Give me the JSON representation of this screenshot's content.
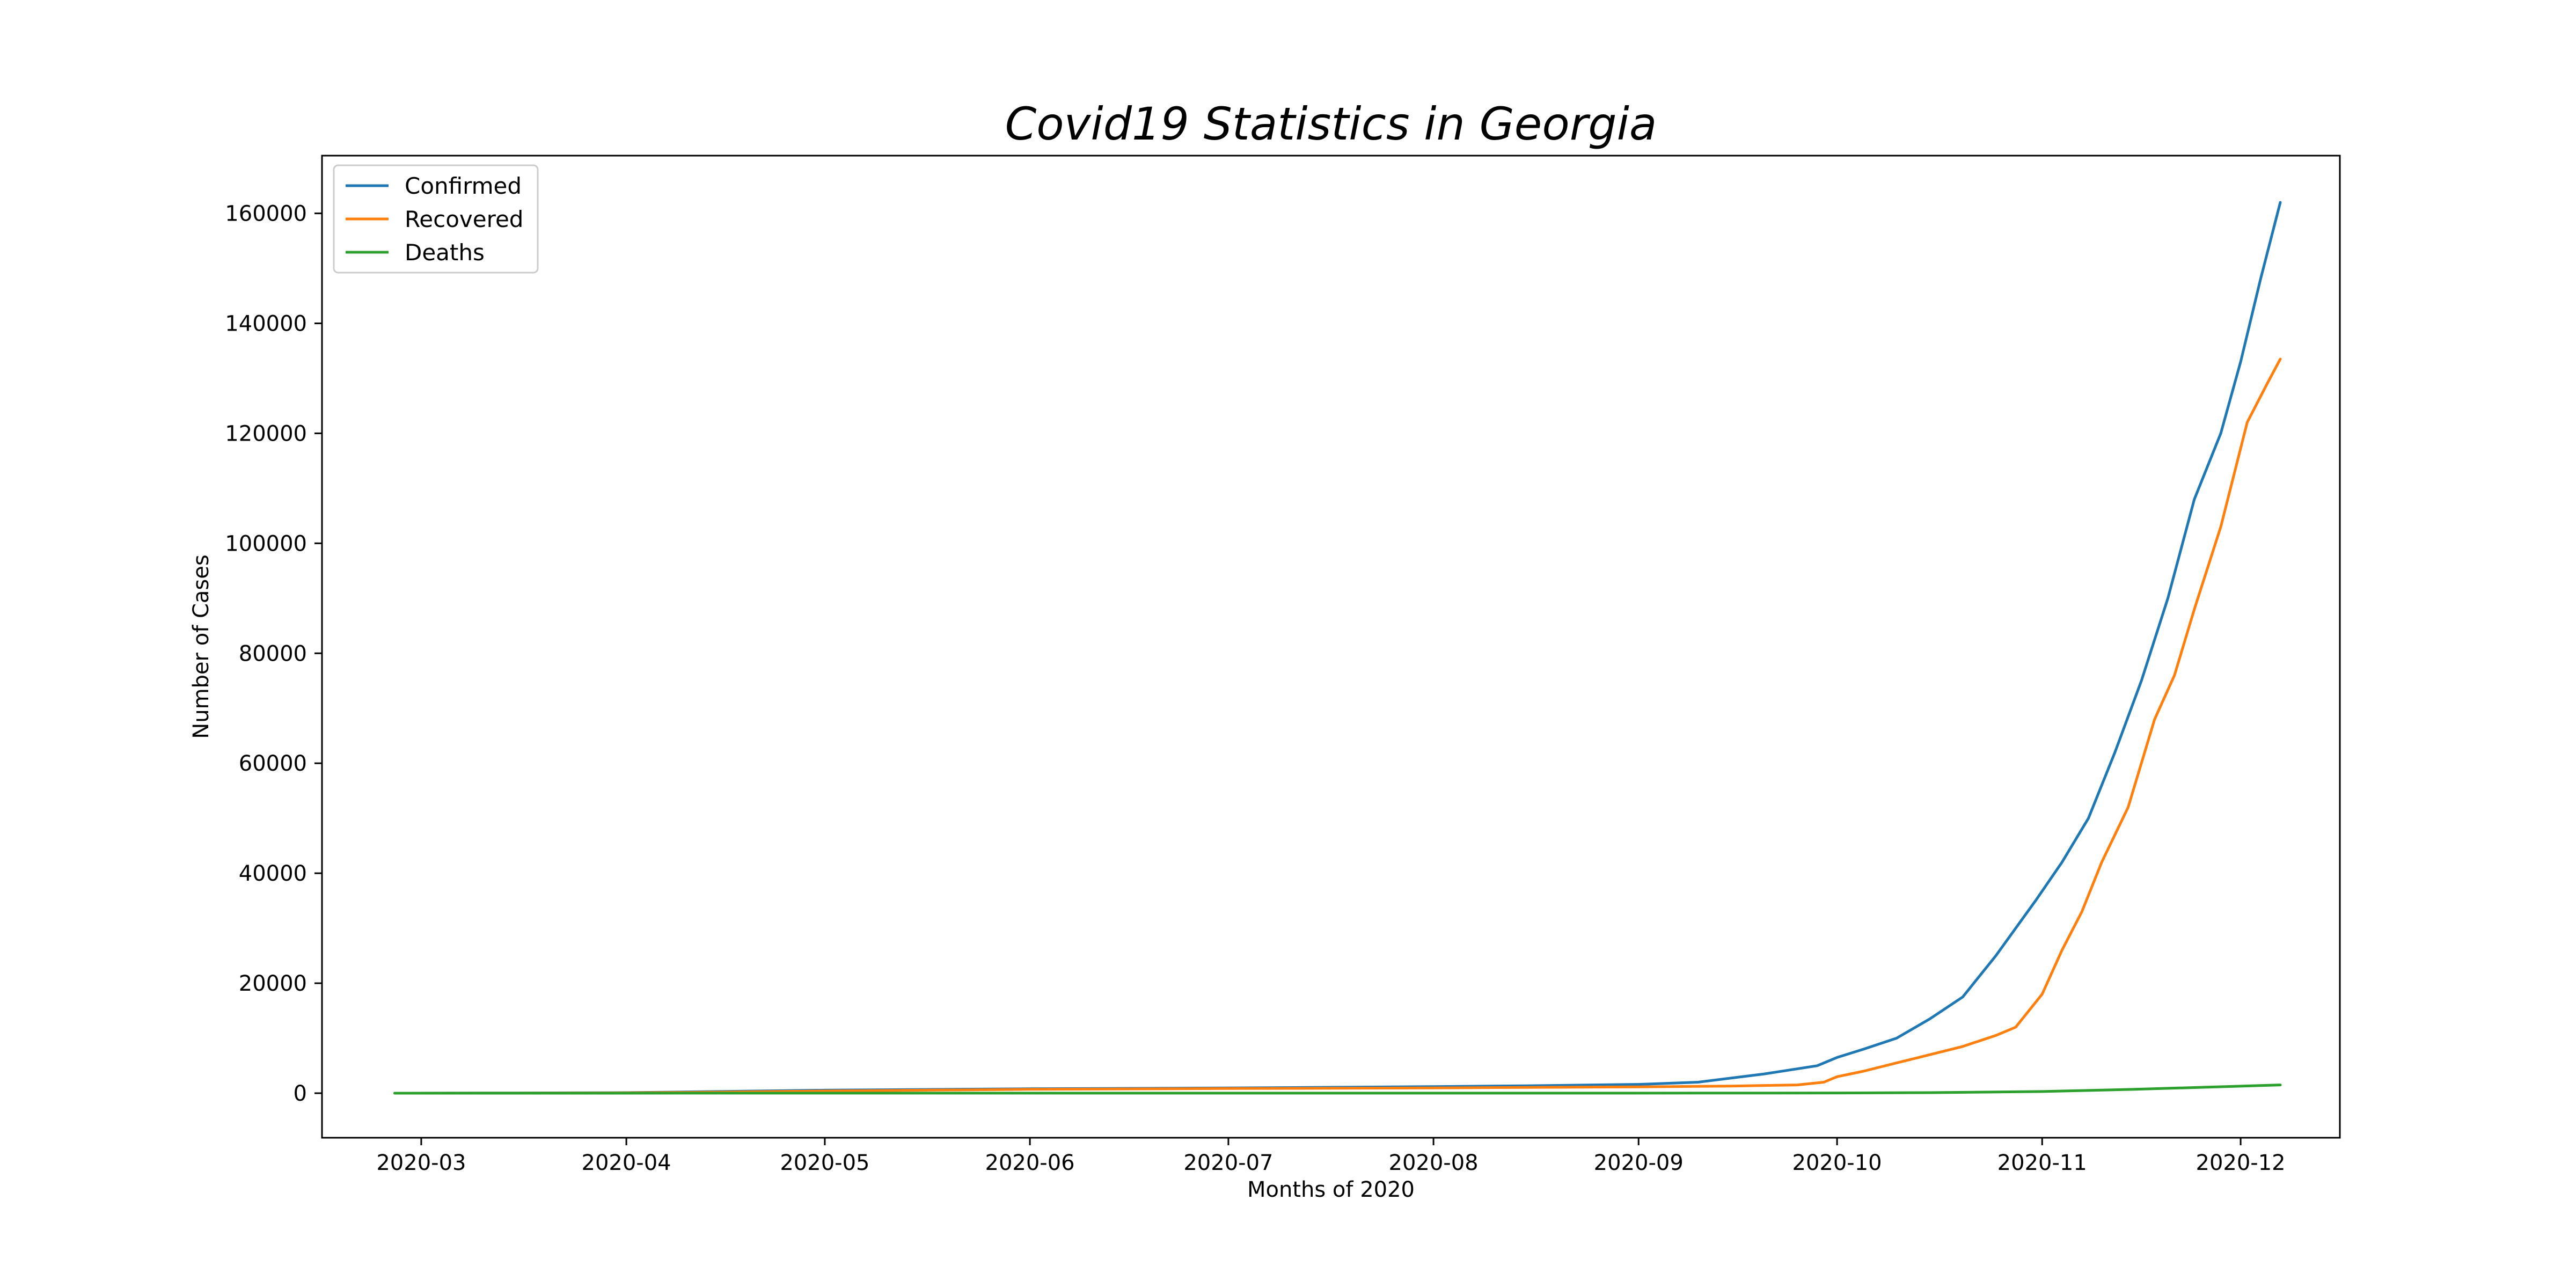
{
  "chart_data": {
    "type": "line",
    "title": "Covid19 Statistics in Georgia",
    "xlabel": "Months of 2020",
    "ylabel": "Number of Cases",
    "x_ticks": [
      "2020-03",
      "2020-04",
      "2020-05",
      "2020-06",
      "2020-07",
      "2020-08",
      "2020-09",
      "2020-10",
      "2020-11",
      "2020-12"
    ],
    "x_range": [
      "2020-02-15",
      "2020-12-16"
    ],
    "y_ticks": [
      0,
      20000,
      40000,
      60000,
      80000,
      100000,
      120000,
      140000,
      160000
    ],
    "ylim": [
      -8100,
      170500
    ],
    "grid": false,
    "legend_position": "top-left",
    "series": [
      {
        "name": "Confirmed",
        "color": "#1f77b4",
        "points": [
          [
            "2020-02-26",
            0
          ],
          [
            "2020-03-15",
            30
          ],
          [
            "2020-04-01",
            100
          ],
          [
            "2020-04-15",
            300
          ],
          [
            "2020-05-01",
            550
          ],
          [
            "2020-06-01",
            800
          ],
          [
            "2020-07-01",
            950
          ],
          [
            "2020-08-01",
            1200
          ],
          [
            "2020-08-15",
            1350
          ],
          [
            "2020-09-01",
            1600
          ],
          [
            "2020-09-10",
            2000
          ],
          [
            "2020-09-20",
            3500
          ],
          [
            "2020-09-28",
            5000
          ],
          [
            "2020-10-01",
            6500
          ],
          [
            "2020-10-05",
            8000
          ],
          [
            "2020-10-10",
            10000
          ],
          [
            "2020-10-15",
            13500
          ],
          [
            "2020-10-20",
            17500
          ],
          [
            "2020-10-25",
            25000
          ],
          [
            "2020-10-31",
            35000
          ],
          [
            "2020-11-04",
            42000
          ],
          [
            "2020-11-08",
            50000
          ],
          [
            "2020-11-12",
            62000
          ],
          [
            "2020-11-16",
            75000
          ],
          [
            "2020-11-20",
            90000
          ],
          [
            "2020-11-24",
            108000
          ],
          [
            "2020-11-28",
            120000
          ],
          [
            "2020-12-01",
            133000
          ],
          [
            "2020-12-04",
            148000
          ],
          [
            "2020-12-07",
            162000
          ]
        ]
      },
      {
        "name": "Recovered",
        "color": "#ff7f0e",
        "points": [
          [
            "2020-02-26",
            0
          ],
          [
            "2020-03-15",
            10
          ],
          [
            "2020-04-01",
            60
          ],
          [
            "2020-04-15",
            200
          ],
          [
            "2020-05-01",
            400
          ],
          [
            "2020-06-01",
            700
          ],
          [
            "2020-07-01",
            850
          ],
          [
            "2020-08-01",
            950
          ],
          [
            "2020-08-15",
            1050
          ],
          [
            "2020-09-01",
            1150
          ],
          [
            "2020-09-15",
            1300
          ],
          [
            "2020-09-25",
            1500
          ],
          [
            "2020-09-29",
            2000
          ],
          [
            "2020-10-01",
            3000
          ],
          [
            "2020-10-05",
            4000
          ],
          [
            "2020-10-10",
            5500
          ],
          [
            "2020-10-15",
            7000
          ],
          [
            "2020-10-20",
            8500
          ],
          [
            "2020-10-25",
            10500
          ],
          [
            "2020-10-28",
            12000
          ],
          [
            "2020-11-01",
            18000
          ],
          [
            "2020-11-04",
            26000
          ],
          [
            "2020-11-07",
            33000
          ],
          [
            "2020-11-10",
            42000
          ],
          [
            "2020-11-14",
            52000
          ],
          [
            "2020-11-18",
            68000
          ],
          [
            "2020-11-21",
            76000
          ],
          [
            "2020-11-24",
            88000
          ],
          [
            "2020-11-28",
            103000
          ],
          [
            "2020-12-02",
            122000
          ],
          [
            "2020-12-05",
            129000
          ],
          [
            "2020-12-07",
            133500
          ]
        ]
      },
      {
        "name": "Deaths",
        "color": "#2ca02c",
        "points": [
          [
            "2020-02-26",
            0
          ],
          [
            "2020-05-01",
            10
          ],
          [
            "2020-08-01",
            15
          ],
          [
            "2020-09-15",
            20
          ],
          [
            "2020-10-01",
            40
          ],
          [
            "2020-10-15",
            100
          ],
          [
            "2020-11-01",
            300
          ],
          [
            "2020-11-15",
            700
          ],
          [
            "2020-12-07",
            1500
          ]
        ]
      }
    ]
  }
}
